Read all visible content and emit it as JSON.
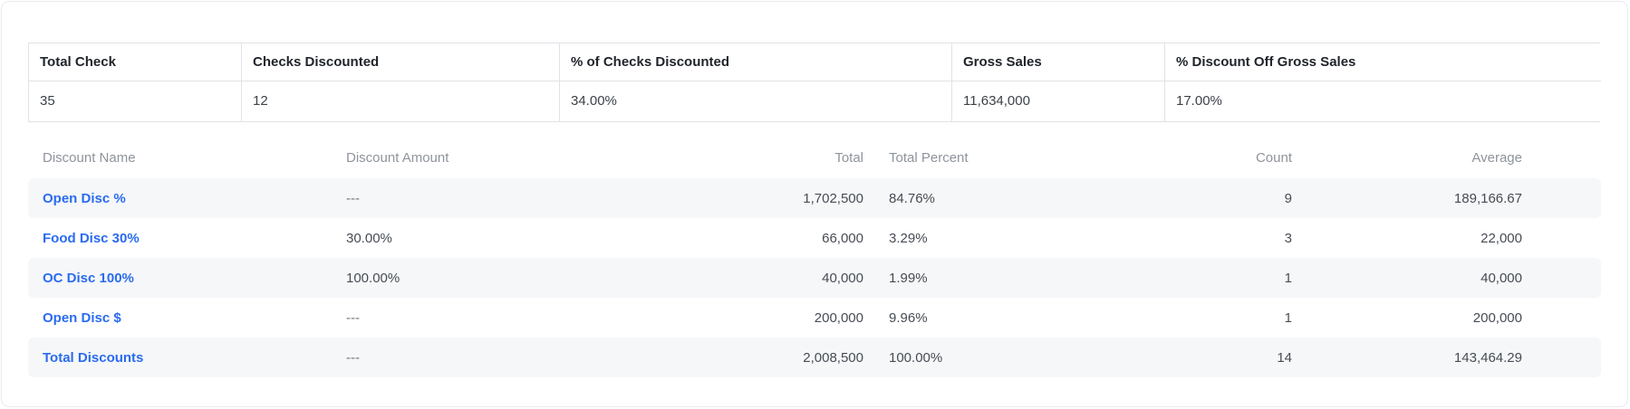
{
  "summary_table": {
    "columns": [
      {
        "label": "Total Check",
        "value": "35"
      },
      {
        "label": "Checks Discounted",
        "value": "12"
      },
      {
        "label": "% of Checks Discounted",
        "value": "34.00%"
      },
      {
        "label": "Gross Sales",
        "value": "11,634,000"
      },
      {
        "label": "% Discount Off Gross Sales",
        "value": "17.00%"
      }
    ]
  },
  "discounts_table": {
    "headers": {
      "name": "Discount Name",
      "amount": "Discount Amount",
      "total": "Total",
      "total_percent": "Total Percent",
      "count": "Count",
      "average": "Average"
    },
    "rows": [
      {
        "name": "Open Disc %",
        "amount": "---",
        "total": "1,702,500",
        "total_percent": "84.76%",
        "count": "9",
        "average": "189,166.67"
      },
      {
        "name": "Food Disc 30%",
        "amount": "30.00%",
        "total": "66,000",
        "total_percent": "3.29%",
        "count": "3",
        "average": "22,000"
      },
      {
        "name": "OC Disc 100%",
        "amount": "100.00%",
        "total": "40,000",
        "total_percent": "1.99%",
        "count": "1",
        "average": "40,000"
      },
      {
        "name": "Open Disc $",
        "amount": "---",
        "total": "200,000",
        "total_percent": "9.96%",
        "count": "1",
        "average": "200,000"
      },
      {
        "name": "Total Discounts",
        "amount": "---",
        "total": "2,008,500",
        "total_percent": "100.00%",
        "count": "14",
        "average": "143,464.29"
      }
    ]
  },
  "colors": {
    "link_accent": "#2a6bf0",
    "row_stripe": "#f6f7f9",
    "table_border": "#dfe2e7",
    "header_text": "#1f242b",
    "muted_header_text": "#8e949c"
  }
}
